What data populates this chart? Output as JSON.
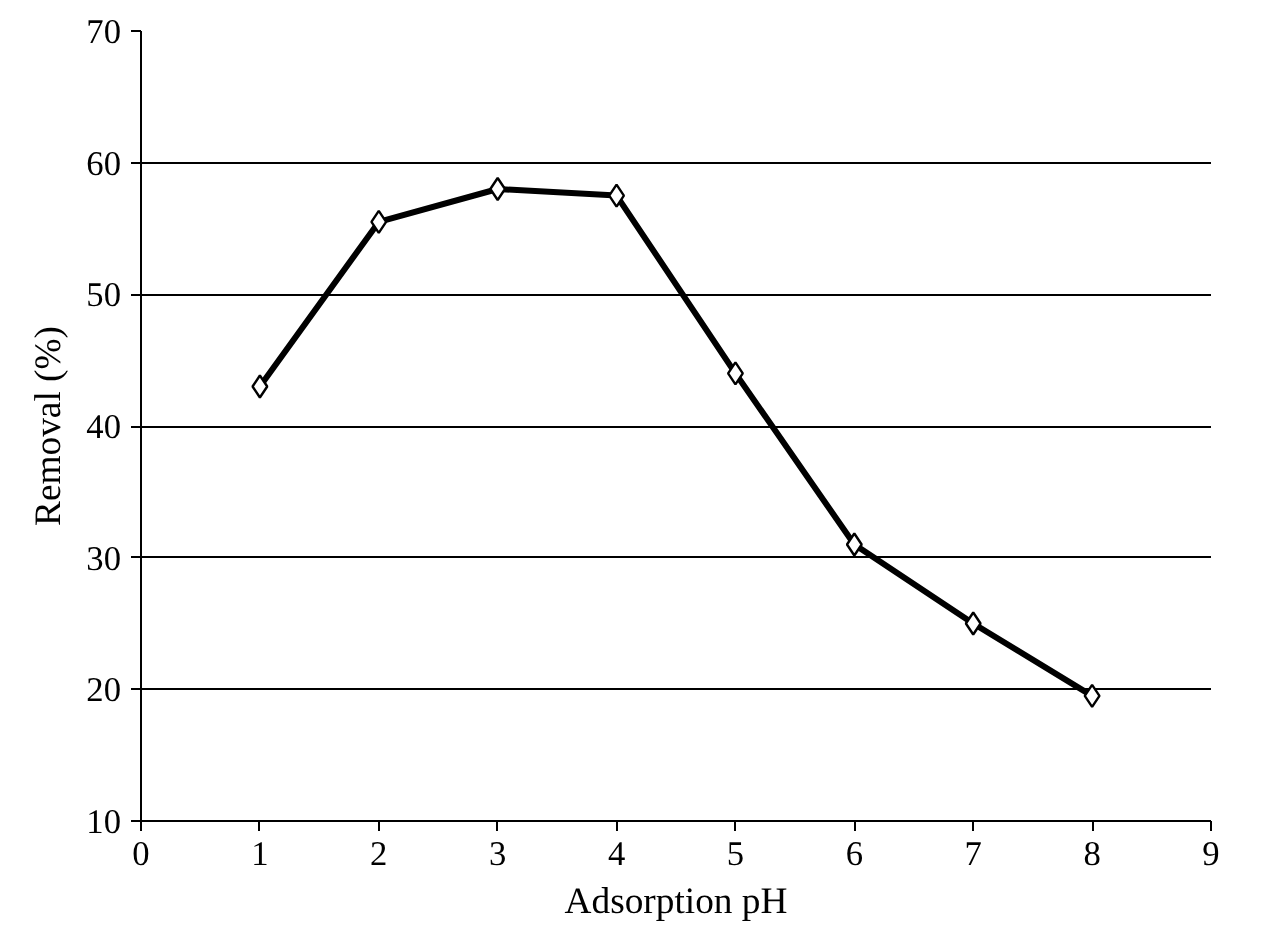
{
  "chart_data": {
    "type": "line",
    "xlabel": "Adsorption pH",
    "ylabel": "Removal (%)",
    "x": [
      1,
      2,
      3,
      4,
      5,
      6,
      7,
      8
    ],
    "series": [
      {
        "color": "#000000",
        "values": [
          43,
          55.5,
          58,
          57.5,
          44,
          31,
          25,
          19.5
        ]
      }
    ],
    "xlim": [
      0,
      9
    ],
    "xticks": [
      0,
      1,
      2,
      3,
      4,
      5,
      6,
      7,
      8,
      9
    ],
    "ylim": [
      10,
      70
    ],
    "yticks": [
      10,
      20,
      30,
      40,
      50,
      60,
      70
    ],
    "grid": "y",
    "marker": "diamond",
    "line_style": "solid"
  }
}
